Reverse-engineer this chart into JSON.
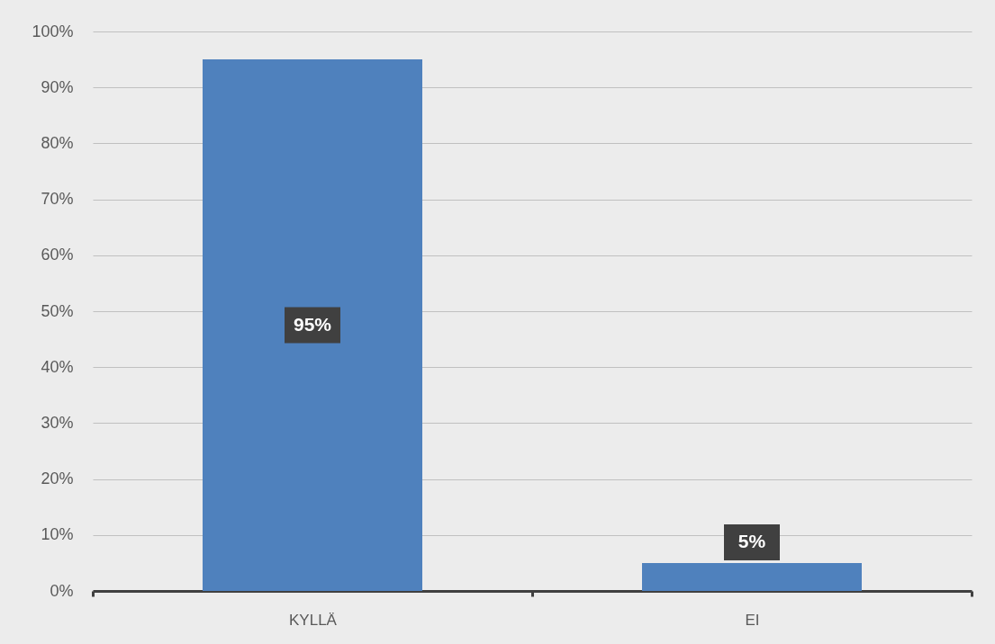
{
  "chart_data": {
    "type": "bar",
    "categories": [
      "KYLLÄ",
      "EI"
    ],
    "values": [
      95,
      5
    ],
    "color": "#4f81bd",
    "value_labels": [
      "95%",
      "5%"
    ],
    "ylim": [
      0,
      100
    ],
    "yticks": [
      {
        "value": 0,
        "label": "0%"
      },
      {
        "value": 10,
        "label": "10%"
      },
      {
        "value": 20,
        "label": "20%"
      },
      {
        "value": 30,
        "label": "30%"
      },
      {
        "value": 40,
        "label": "40%"
      },
      {
        "value": 50,
        "label": "50%"
      },
      {
        "value": 60,
        "label": "60%"
      },
      {
        "value": 70,
        "label": "70%"
      },
      {
        "value": 80,
        "label": "80%"
      },
      {
        "value": 90,
        "label": "90%"
      },
      {
        "value": 100,
        "label": "100%"
      }
    ],
    "grid": "y"
  }
}
